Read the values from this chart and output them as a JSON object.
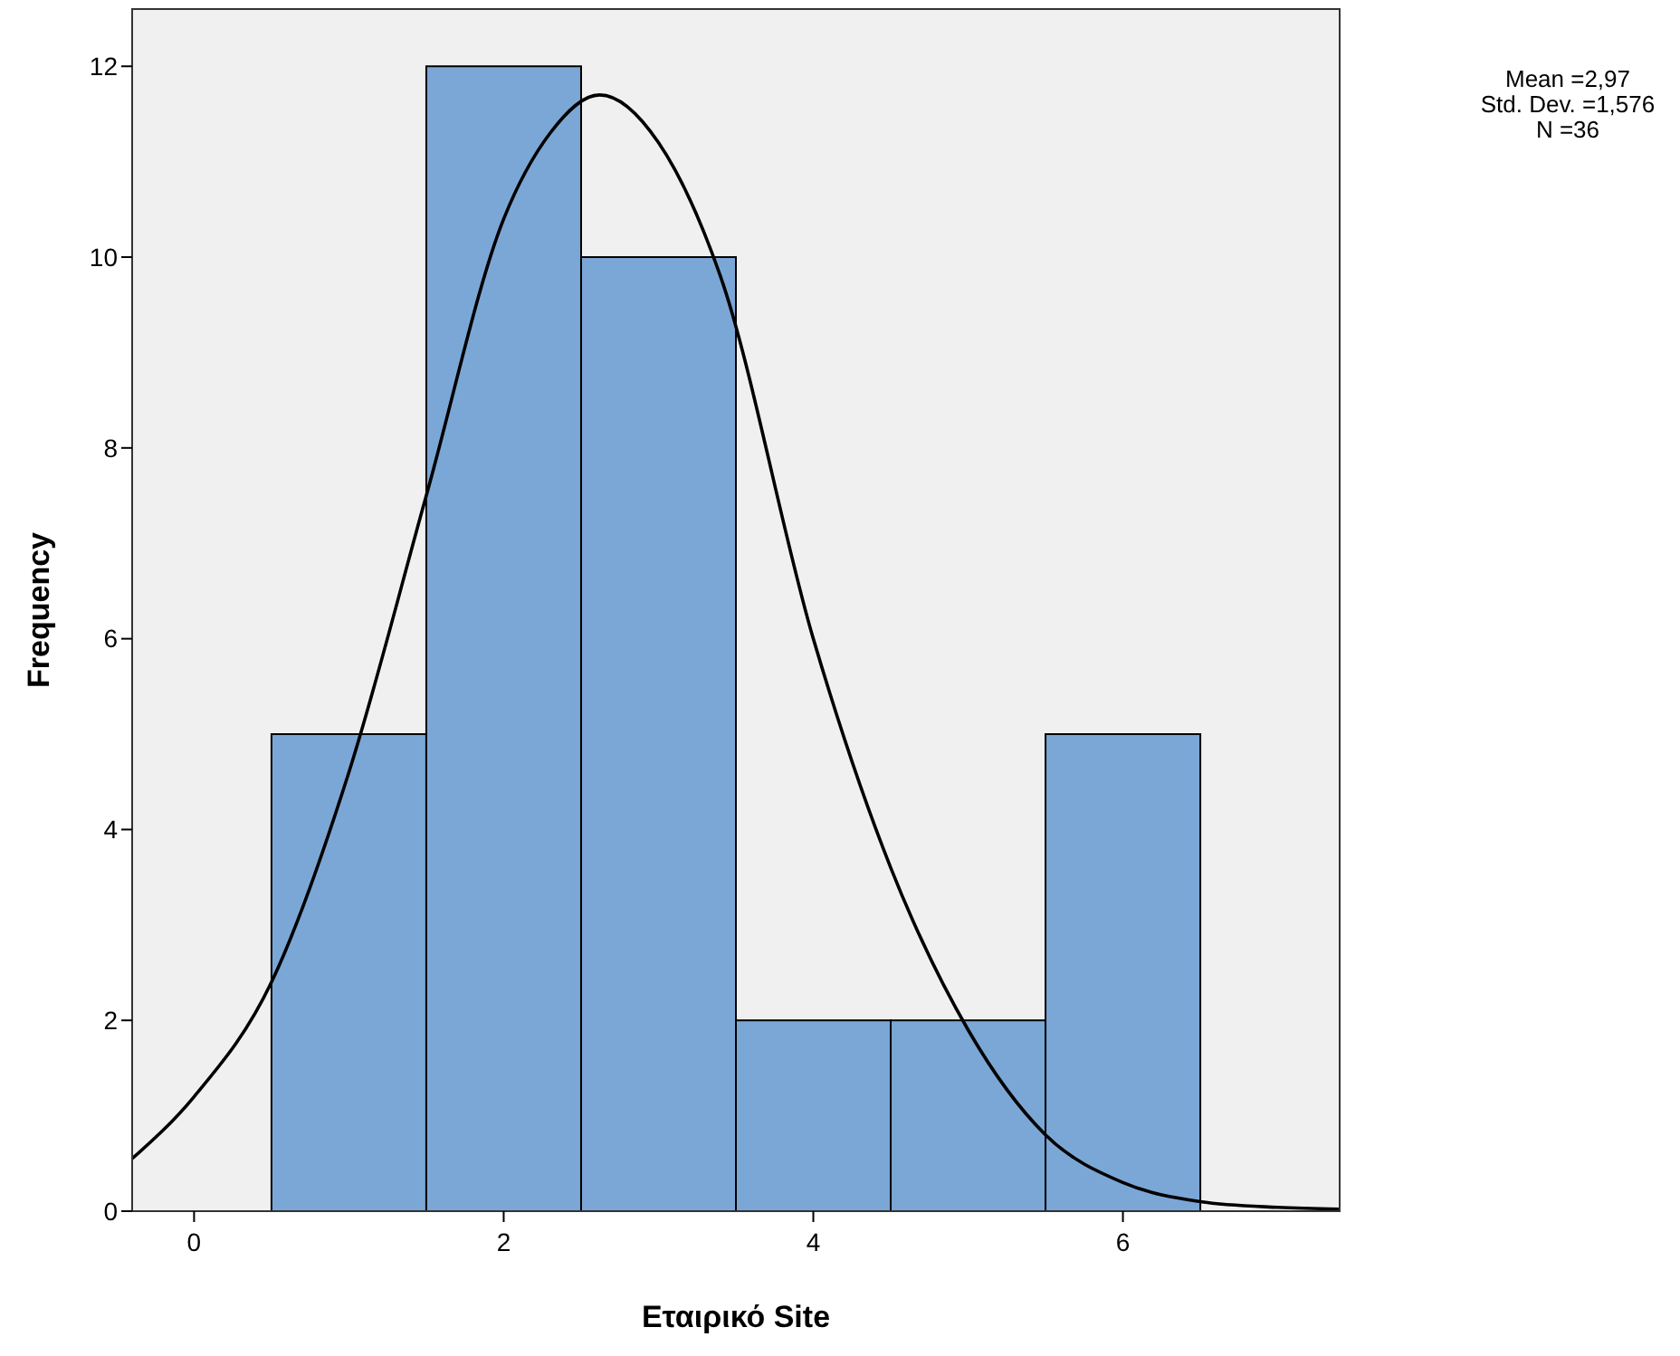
{
  "chart_data": {
    "type": "histogram",
    "xlabel": "Εταιρικό Site",
    "ylabel": "Frequency",
    "bins": [
      0.5,
      1.5,
      2.5,
      3.5,
      4.5,
      5.5,
      6.5
    ],
    "values": [
      5,
      12,
      10,
      2,
      2,
      5
    ],
    "color": "#7ba7d6",
    "series": [
      {
        "type": "line",
        "color": "#000000",
        "x": [
          -0.4,
          0,
          0.5,
          1,
          1.5,
          2,
          2.3,
          2.62,
          3,
          3.4,
          4,
          4.5,
          5,
          5.5,
          6,
          6.5,
          7,
          7.4
        ],
        "values": [
          0.55,
          1.2,
          2.4,
          4.6,
          7.5,
          10.4,
          11.3,
          11.7,
          11.2,
          9.8,
          6.0,
          3.6,
          1.9,
          0.8,
          0.3,
          0.1,
          0.04,
          0.02
        ]
      }
    ],
    "xlim": [
      -0.4,
      7.4
    ],
    "xticks": [
      0,
      2,
      4,
      6
    ],
    "ylim": [
      0,
      12.6
    ],
    "yticks": [
      0,
      2,
      4,
      6,
      8,
      10,
      12
    ],
    "annotations": [
      "Mean =2,97",
      "Std. Dev. =1,576",
      "N =36"
    ]
  }
}
